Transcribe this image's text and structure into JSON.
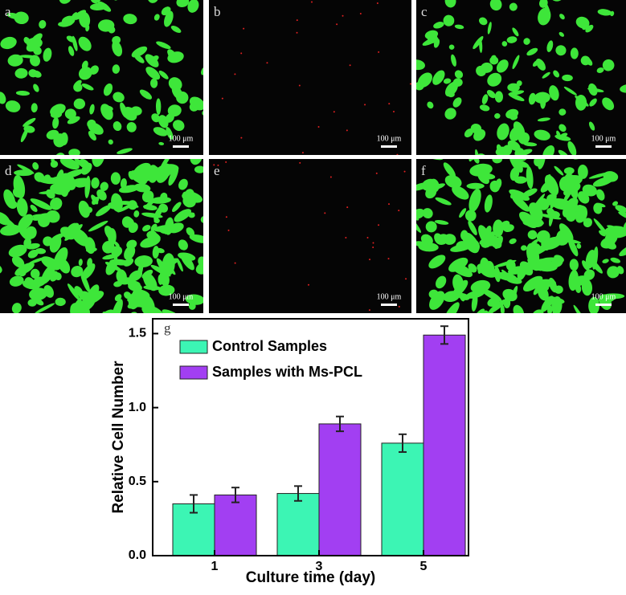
{
  "panels": [
    {
      "label": "a",
      "scale_bar": "100 μm",
      "kind": "green",
      "density": 1
    },
    {
      "label": "b",
      "scale_bar": "100 μm",
      "kind": "red",
      "density": 1
    },
    {
      "label": "c",
      "scale_bar": "100 μm",
      "kind": "green",
      "density": 1
    },
    {
      "label": "d",
      "scale_bar": "100 μm",
      "kind": "green",
      "density": 2
    },
    {
      "label": "e",
      "scale_bar": "100 μm",
      "kind": "red",
      "density": 1
    },
    {
      "label": "f",
      "scale_bar": "100 μm",
      "kind": "green",
      "density": 2
    }
  ],
  "chart_data": {
    "type": "bar",
    "panel_label": "g",
    "x_label": "Culture time (day)",
    "y_label": "Relative Cell Number",
    "categories": [
      "1",
      "3",
      "5"
    ],
    "series": [
      {
        "name": "Control Samples",
        "color": "#3cf5b4",
        "values": [
          0.35,
          0.42,
          0.76
        ],
        "errors": [
          0.06,
          0.05,
          0.06
        ]
      },
      {
        "name": "Samples with Ms-PCL",
        "color": "#a23ff2",
        "values": [
          0.41,
          0.89,
          1.49
        ],
        "errors": [
          0.05,
          0.05,
          0.06
        ]
      }
    ],
    "ylim": [
      0,
      1.6
    ],
    "yticks": [
      {
        "value": 0,
        "label": "0.0"
      },
      {
        "value": 0.5,
        "label": "0.5"
      },
      {
        "value": 1,
        "label": "1.0"
      },
      {
        "value": 1.5,
        "label": "1.5"
      }
    ],
    "legend": "upper-left"
  }
}
